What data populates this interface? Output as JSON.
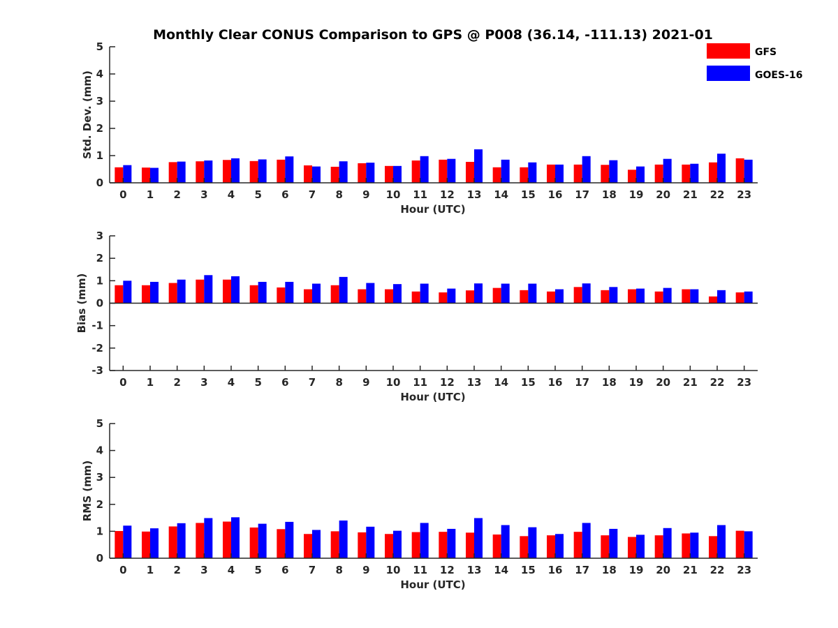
{
  "chart_data": {
    "type": "bar",
    "title": "Monthly Clear CONUS Comparison to GPS @ P008 (36.14, -111.13) 2021-01",
    "colors": {
      "GFS": "#ff0000",
      "GOES-16": "#0000ff"
    },
    "legend": {
      "placement": "top-right",
      "entries": [
        "GFS",
        "GOES-16"
      ]
    },
    "categories": [
      "0",
      "1",
      "2",
      "3",
      "4",
      "5",
      "6",
      "7",
      "8",
      "9",
      "10",
      "11",
      "12",
      "13",
      "14",
      "15",
      "16",
      "17",
      "18",
      "19",
      "20",
      "21",
      "22",
      "23"
    ],
    "panels": [
      {
        "id": "std",
        "ylabel": "Std. Dev. (mm)",
        "xlabel": "Hour (UTC)",
        "ylim": [
          0,
          5
        ],
        "yticks": [
          "0",
          "1",
          "2",
          "3",
          "4",
          "5"
        ],
        "series": [
          {
            "name": "GFS",
            "values": [
              0.57,
              0.56,
              0.76,
              0.79,
              0.84,
              0.8,
              0.85,
              0.64,
              0.59,
              0.72,
              0.62,
              0.82,
              0.85,
              0.77,
              0.57,
              0.57,
              0.67,
              0.67,
              0.66,
              0.48,
              0.67,
              0.67,
              0.75,
              0.9
            ]
          },
          {
            "name": "GOES-16",
            "values": [
              0.65,
              0.55,
              0.78,
              0.82,
              0.9,
              0.86,
              0.97,
              0.6,
              0.79,
              0.74,
              0.62,
              0.98,
              0.88,
              1.23,
              0.85,
              0.75,
              0.67,
              0.98,
              0.83,
              0.6,
              0.88,
              0.7,
              1.07,
              0.85
            ]
          }
        ]
      },
      {
        "id": "bias",
        "ylabel": "Bias (mm)",
        "xlabel": "Hour (UTC)",
        "ylim": [
          -3,
          3
        ],
        "yticks": [
          "-3",
          "-2",
          "-1",
          "0",
          "1",
          "2",
          "3"
        ],
        "series": [
          {
            "name": "GFS",
            "values": [
              0.8,
              0.8,
              0.9,
              1.05,
              1.05,
              0.8,
              0.7,
              0.62,
              0.8,
              0.62,
              0.62,
              0.52,
              0.48,
              0.57,
              0.68,
              0.58,
              0.52,
              0.72,
              0.58,
              0.62,
              0.52,
              0.62,
              0.3,
              0.48
            ]
          },
          {
            "name": "GOES-16",
            "values": [
              1.0,
              0.95,
              1.05,
              1.25,
              1.2,
              0.95,
              0.95,
              0.87,
              1.17,
              0.9,
              0.85,
              0.87,
              0.65,
              0.88,
              0.87,
              0.87,
              0.62,
              0.88,
              0.72,
              0.65,
              0.68,
              0.62,
              0.58,
              0.52
            ]
          }
        ]
      },
      {
        "id": "rms",
        "ylabel": "RMS (mm)",
        "xlabel": "Hour (UTC)",
        "ylim": [
          0,
          5
        ],
        "yticks": [
          "0",
          "1",
          "2",
          "3",
          "4",
          "5"
        ],
        "series": [
          {
            "name": "GFS",
            "values": [
              1.01,
              0.99,
              1.18,
              1.31,
              1.36,
              1.14,
              1.08,
              0.9,
              1.0,
              0.96,
              0.9,
              0.97,
              0.98,
              0.95,
              0.88,
              0.82,
              0.85,
              0.98,
              0.85,
              0.79,
              0.85,
              0.92,
              0.82,
              1.02
            ]
          },
          {
            "name": "GOES-16",
            "values": [
              1.21,
              1.11,
              1.3,
              1.49,
              1.52,
              1.28,
              1.35,
              1.05,
              1.4,
              1.17,
              1.02,
              1.31,
              1.09,
              1.49,
              1.23,
              1.15,
              0.9,
              1.31,
              1.09,
              0.87,
              1.12,
              0.95,
              1.23,
              1.0
            ]
          }
        ]
      }
    ]
  }
}
